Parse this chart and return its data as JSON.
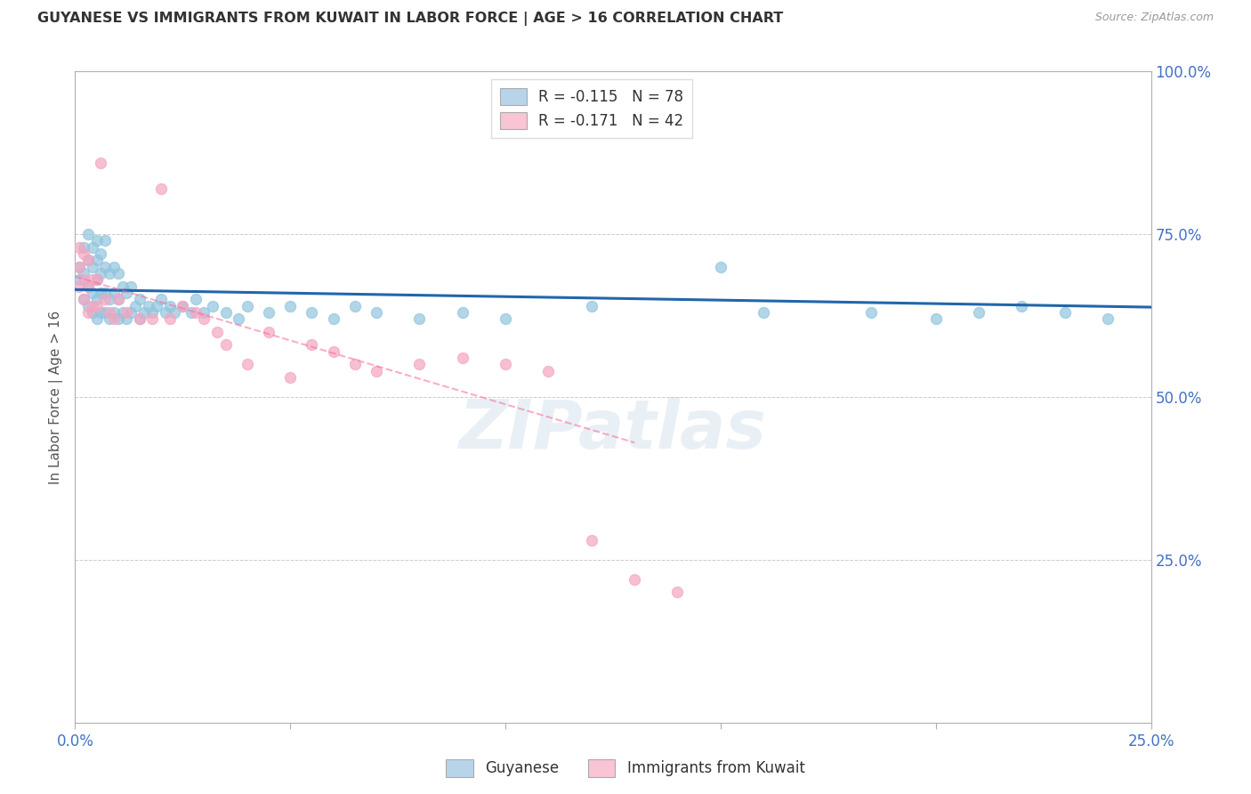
{
  "title": "GUYANESE VS IMMIGRANTS FROM KUWAIT IN LABOR FORCE | AGE > 16 CORRELATION CHART",
  "source": "Source: ZipAtlas.com",
  "ylabel": "In Labor Force | Age > 16",
  "xlim": [
    0.0,
    0.25
  ],
  "ylim": [
    0.0,
    1.0
  ],
  "x_tick_positions": [
    0.0,
    0.05,
    0.1,
    0.15,
    0.2,
    0.25
  ],
  "x_tick_labels": [
    "0.0%",
    "",
    "",
    "",
    "",
    "25.0%"
  ],
  "y_tick_positions": [
    0.0,
    0.25,
    0.5,
    0.75,
    1.0
  ],
  "y_tick_labels_right": [
    "",
    "25.0%",
    "50.0%",
    "75.0%",
    "100.0%"
  ],
  "legend_blue_label": "R = -0.115   N = 78",
  "legend_pink_label": "R = -0.171   N = 42",
  "blue_scatter_color": "#92c5de",
  "pink_scatter_color": "#f4a6c0",
  "blue_line_color": "#2166ac",
  "pink_line_color": "#f768a1",
  "background_color": "#ffffff",
  "grid_color": "#cccccc",
  "title_color": "#333333",
  "axis_label_color": "#4472c4",
  "watermark": "ZIPatlas",
  "blue_scatter_x": [
    0.001,
    0.001,
    0.002,
    0.002,
    0.002,
    0.003,
    0.003,
    0.003,
    0.003,
    0.004,
    0.004,
    0.004,
    0.004,
    0.005,
    0.005,
    0.005,
    0.005,
    0.005,
    0.006,
    0.006,
    0.006,
    0.006,
    0.007,
    0.007,
    0.007,
    0.007,
    0.008,
    0.008,
    0.008,
    0.009,
    0.009,
    0.009,
    0.01,
    0.01,
    0.01,
    0.011,
    0.011,
    0.012,
    0.012,
    0.013,
    0.013,
    0.014,
    0.015,
    0.015,
    0.016,
    0.017,
    0.018,
    0.019,
    0.02,
    0.021,
    0.022,
    0.023,
    0.025,
    0.027,
    0.028,
    0.03,
    0.032,
    0.035,
    0.038,
    0.04,
    0.045,
    0.05,
    0.055,
    0.06,
    0.065,
    0.07,
    0.08,
    0.09,
    0.1,
    0.12,
    0.15,
    0.16,
    0.185,
    0.2,
    0.21,
    0.22,
    0.23,
    0.24
  ],
  "blue_scatter_y": [
    0.68,
    0.7,
    0.65,
    0.69,
    0.73,
    0.64,
    0.67,
    0.71,
    0.75,
    0.63,
    0.66,
    0.7,
    0.73,
    0.62,
    0.65,
    0.68,
    0.71,
    0.74,
    0.63,
    0.66,
    0.69,
    0.72,
    0.63,
    0.66,
    0.7,
    0.74,
    0.62,
    0.65,
    0.69,
    0.63,
    0.66,
    0.7,
    0.62,
    0.65,
    0.69,
    0.63,
    0.67,
    0.62,
    0.66,
    0.63,
    0.67,
    0.64,
    0.62,
    0.65,
    0.63,
    0.64,
    0.63,
    0.64,
    0.65,
    0.63,
    0.64,
    0.63,
    0.64,
    0.63,
    0.65,
    0.63,
    0.64,
    0.63,
    0.62,
    0.64,
    0.63,
    0.64,
    0.63,
    0.62,
    0.64,
    0.63,
    0.62,
    0.63,
    0.62,
    0.64,
    0.7,
    0.63,
    0.63,
    0.62,
    0.63,
    0.64,
    0.63,
    0.62
  ],
  "pink_scatter_x": [
    0.001,
    0.001,
    0.001,
    0.002,
    0.002,
    0.002,
    0.003,
    0.003,
    0.003,
    0.004,
    0.004,
    0.005,
    0.005,
    0.006,
    0.007,
    0.008,
    0.009,
    0.01,
    0.012,
    0.015,
    0.018,
    0.02,
    0.022,
    0.025,
    0.028,
    0.03,
    0.033,
    0.035,
    0.04,
    0.045,
    0.05,
    0.055,
    0.06,
    0.065,
    0.07,
    0.08,
    0.09,
    0.1,
    0.11,
    0.12,
    0.13,
    0.14
  ],
  "pink_scatter_y": [
    0.67,
    0.7,
    0.73,
    0.65,
    0.68,
    0.72,
    0.63,
    0.67,
    0.71,
    0.64,
    0.68,
    0.64,
    0.68,
    0.86,
    0.65,
    0.63,
    0.62,
    0.65,
    0.63,
    0.62,
    0.62,
    0.82,
    0.62,
    0.64,
    0.63,
    0.62,
    0.6,
    0.58,
    0.55,
    0.6,
    0.53,
    0.58,
    0.57,
    0.55,
    0.54,
    0.55,
    0.56,
    0.55,
    0.54,
    0.28,
    0.22,
    0.2
  ],
  "blue_trend_x": [
    0.0,
    0.25
  ],
  "blue_trend_y": [
    0.665,
    0.638
  ],
  "pink_trend_x": [
    0.0,
    0.13
  ],
  "pink_trend_y": [
    0.685,
    0.43
  ]
}
